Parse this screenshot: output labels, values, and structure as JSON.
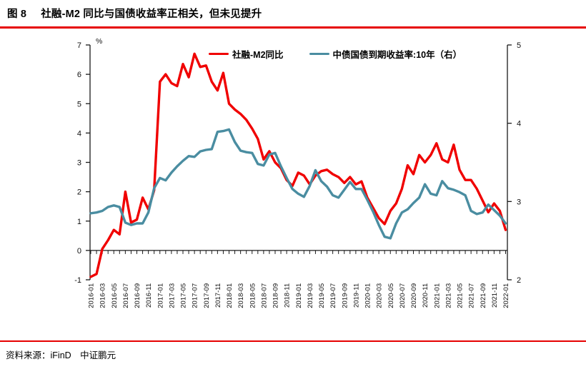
{
  "figure": {
    "label": "图 8",
    "title": "社融-M2 同比与国债收益率正相关，但未见提升"
  },
  "source_note": "资料来源：iFinD　中证鹏元",
  "accent_color": "#e60000",
  "chart_data": {
    "type": "line",
    "title": "社融-M2 同比与国债收益率正相关，但未见提升",
    "legend_position": "top-center",
    "grid": false,
    "x": [
      "2016-01",
      "2016-02",
      "2016-03",
      "2016-04",
      "2016-05",
      "2016-06",
      "2016-07",
      "2016-08",
      "2016-09",
      "2016-10",
      "2016-11",
      "2016-12",
      "2017-01",
      "2017-02",
      "2017-03",
      "2017-04",
      "2017-05",
      "2017-06",
      "2017-07",
      "2017-08",
      "2017-09",
      "2017-10",
      "2017-11",
      "2017-12",
      "2018-01",
      "2018-02",
      "2018-03",
      "2018-04",
      "2018-05",
      "2018-06",
      "2018-07",
      "2018-08",
      "2018-09",
      "2018-10",
      "2018-11",
      "2018-12",
      "2019-01",
      "2019-02",
      "2019-03",
      "2019-04",
      "2019-05",
      "2019-06",
      "2019-07",
      "2019-08",
      "2019-09",
      "2019-10",
      "2019-11",
      "2019-12",
      "2020-01",
      "2020-02",
      "2020-03",
      "2020-04",
      "2020-05",
      "2020-06",
      "2020-07",
      "2020-08",
      "2020-09",
      "2020-10",
      "2020-11",
      "2020-12",
      "2021-01",
      "2021-02",
      "2021-03",
      "2021-04",
      "2021-05",
      "2021-06",
      "2021-07",
      "2021-08",
      "2021-09",
      "2021-10",
      "2021-11",
      "2021-12",
      "2022-01"
    ],
    "x_tick_step": 2,
    "left_axis": {
      "unit_label": "%",
      "min": -1,
      "max": 7,
      "ticks": [
        7,
        6,
        5,
        4,
        3,
        2,
        1,
        0,
        -1
      ],
      "zero_axis_line": true
    },
    "right_axis": {
      "min": 2,
      "max": 5,
      "ticks": [
        5,
        4,
        3,
        2
      ]
    },
    "series": [
      {
        "name": "社融-M2同比",
        "axis": "left",
        "color": "#f00000",
        "values": [
          -0.9,
          -0.8,
          0.05,
          0.35,
          0.7,
          0.55,
          2.0,
          0.95,
          1.05,
          1.8,
          1.4,
          2.05,
          5.75,
          6.0,
          5.7,
          5.6,
          6.35,
          5.9,
          6.7,
          6.25,
          6.3,
          5.75,
          5.45,
          6.05,
          5.0,
          4.8,
          4.65,
          4.45,
          4.15,
          3.8,
          3.1,
          3.38,
          3.0,
          2.8,
          2.4,
          2.2,
          2.65,
          2.55,
          2.25,
          2.55,
          2.7,
          2.75,
          2.6,
          2.5,
          2.3,
          2.5,
          2.25,
          2.35,
          1.8,
          1.45,
          1.1,
          0.9,
          1.35,
          1.6,
          2.1,
          2.9,
          2.6,
          3.25,
          3.0,
          3.25,
          3.65,
          3.1,
          3.0,
          3.6,
          2.75,
          2.4,
          2.4,
          2.1,
          1.7,
          1.3,
          1.6,
          1.35,
          0.7
        ]
      },
      {
        "name": "中债国债到期收益率:10年（右）",
        "axis": "right",
        "color": "#4a8da1",
        "values": [
          2.85,
          2.86,
          2.88,
          2.93,
          2.95,
          2.93,
          2.73,
          2.7,
          2.72,
          2.72,
          2.86,
          3.17,
          3.3,
          3.27,
          3.37,
          3.45,
          3.52,
          3.58,
          3.57,
          3.64,
          3.66,
          3.67,
          3.89,
          3.9,
          3.92,
          3.76,
          3.65,
          3.63,
          3.62,
          3.48,
          3.46,
          3.6,
          3.62,
          3.45,
          3.3,
          3.16,
          3.1,
          3.06,
          3.2,
          3.4,
          3.26,
          3.19,
          3.08,
          3.05,
          3.15,
          3.25,
          3.16,
          3.16,
          3.02,
          2.87,
          2.7,
          2.55,
          2.53,
          2.72,
          2.86,
          2.9,
          2.98,
          3.05,
          3.22,
          3.1,
          3.08,
          3.26,
          3.17,
          3.15,
          3.12,
          3.08,
          2.88,
          2.84,
          2.86,
          2.96,
          2.89,
          2.82,
          2.72
        ]
      }
    ]
  }
}
